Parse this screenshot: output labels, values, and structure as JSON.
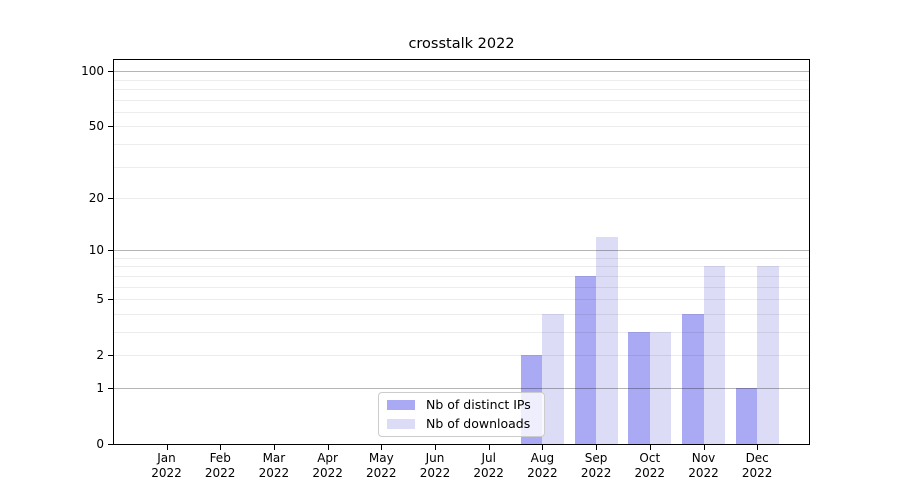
{
  "title": "crosstalk 2022",
  "year_label": "2022",
  "legend": {
    "items": [
      {
        "label": "Nb of distinct IPs",
        "color": "#a9a9f4"
      },
      {
        "label": "Nb of downloads",
        "color": "#dcdcf7"
      }
    ]
  },
  "chart_data": {
    "type": "bar",
    "title": "crosstalk 2022",
    "categories": [
      "Jan 2022",
      "Feb 2022",
      "Mar 2022",
      "Apr 2022",
      "May 2022",
      "Jun 2022",
      "Jul 2022",
      "Aug 2022",
      "Sep 2022",
      "Oct 2022",
      "Nov 2022",
      "Dec 2022"
    ],
    "months": [
      "Jan",
      "Feb",
      "Mar",
      "Apr",
      "May",
      "Jun",
      "Jul",
      "Aug",
      "Sep",
      "Oct",
      "Nov",
      "Dec"
    ],
    "series": [
      {
        "name": "Nb of distinct IPs",
        "color": "#a9a9f4",
        "values": [
          0,
          0,
          0,
          0,
          0,
          0,
          0,
          2,
          7,
          3,
          4,
          1
        ]
      },
      {
        "name": "Nb of downloads",
        "color": "#dcdcf7",
        "values": [
          0,
          0,
          0,
          0,
          0,
          0,
          0,
          4,
          12,
          3,
          8,
          8
        ]
      }
    ],
    "xlabel": "",
    "ylabel": "",
    "yscale": "log1p",
    "ylim": [
      0,
      118
    ],
    "yticks": [
      0,
      1,
      2,
      5,
      10,
      20,
      50,
      100
    ],
    "grid_minor": [
      2,
      3,
      4,
      5,
      6,
      7,
      8,
      9,
      20,
      30,
      40,
      50,
      60,
      70,
      80,
      90
    ],
    "grid_major": [
      1,
      10,
      100
    ],
    "grid": "on",
    "legend_position": "lower-center"
  }
}
